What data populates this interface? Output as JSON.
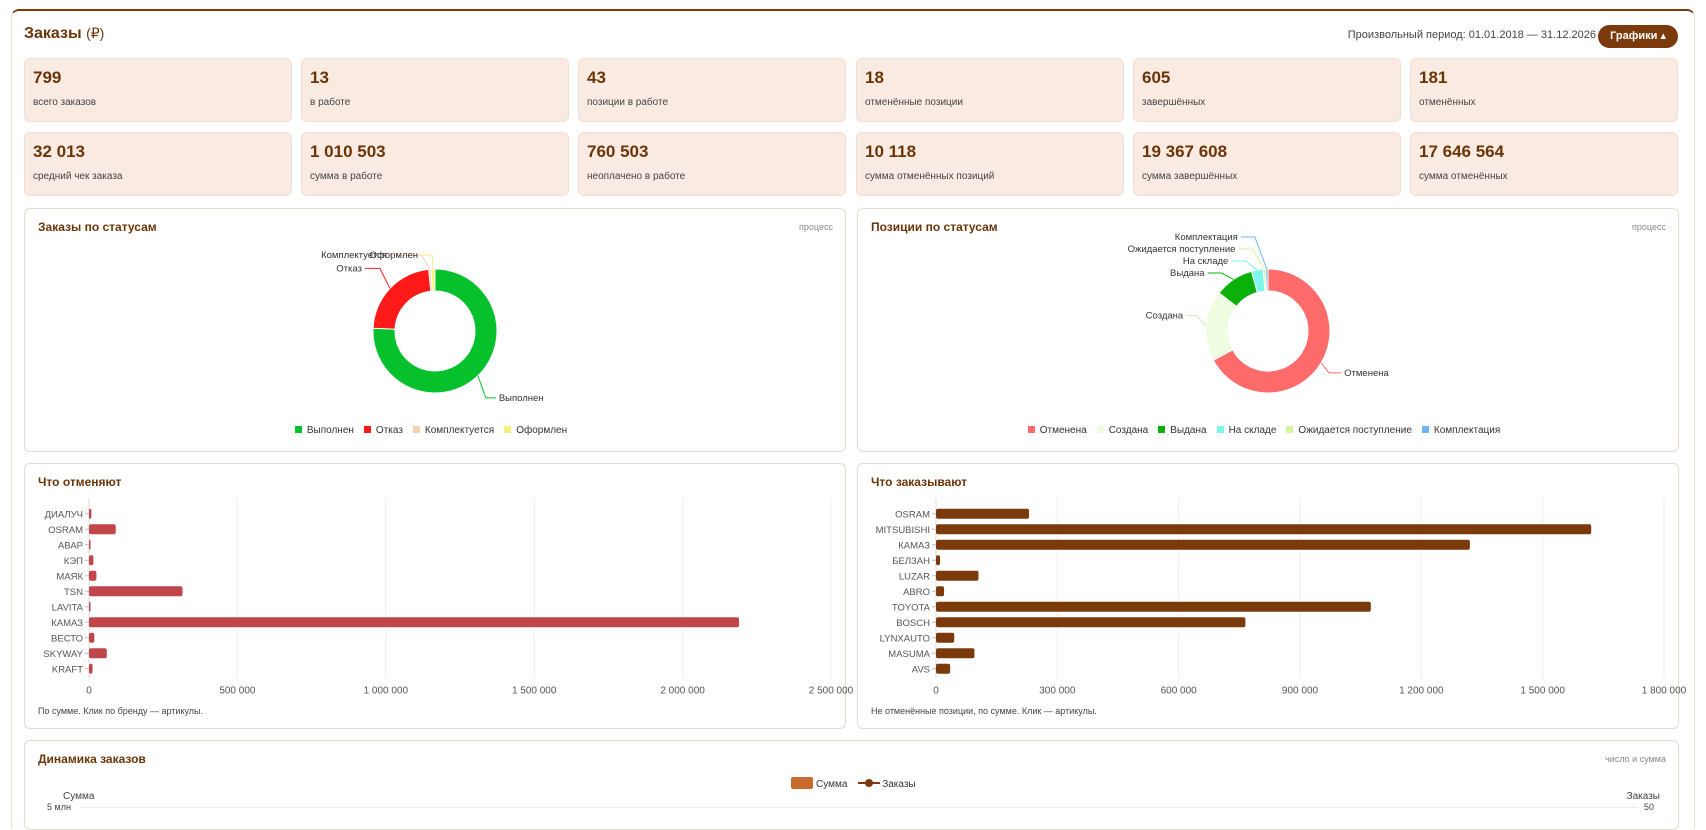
{
  "header": {
    "title": "Заказы",
    "currency": "(₽)",
    "period": "Произвольный период: 01.01.2018 — 31.12.2026",
    "charts_button": "Графики ▴"
  },
  "kpis_row1": [
    {
      "value": "799",
      "label": "всего заказов"
    },
    {
      "value": "13",
      "label": "в работе"
    },
    {
      "value": "43",
      "label": "позиции в работе"
    },
    {
      "value": "18",
      "label": "отменённые позиции"
    },
    {
      "value": "605",
      "label": "завершённых"
    },
    {
      "value": "181",
      "label": "отменённых"
    }
  ],
  "kpis_row2": [
    {
      "value": "32 013",
      "label": "средний чек заказа"
    },
    {
      "value": "1 010 503",
      "label": "сумма в работе"
    },
    {
      "value": "760 503",
      "label": "неоплачено в работе"
    },
    {
      "value": "10 118",
      "label": "сумма отменённых позиций"
    },
    {
      "value": "19 367 608",
      "label": "сумма завершённых"
    },
    {
      "value": "17 646 564",
      "label": "сумма отменённых"
    }
  ],
  "orders_status": {
    "title": "Заказы по статусам",
    "hint": "процесс",
    "legend": [
      "Выполнен",
      "Отказ",
      "Комплектуется",
      "Оформлен"
    ]
  },
  "positions_status": {
    "title": "Позиции по статусам",
    "hint": "процесс",
    "legend": [
      "Отменена",
      "Создана",
      "Выдана",
      "На складе",
      "Ожидается поступление",
      "Комплектация"
    ]
  },
  "cancel_panel": {
    "title": "Что отменяют",
    "note": "По сумме. Клик по бренду — артикулы."
  },
  "order_panel": {
    "title": "Что заказывают",
    "note": "Не отменённые позиции, по сумме. Клик — артикулы."
  },
  "dynamics": {
    "title": "Динамика заказов",
    "hint": "число и сумма",
    "legend_sum": "Сумма",
    "legend_orders": "Заказы",
    "left_axis_title": "Сумма",
    "right_axis_title": "Заказы",
    "left_top_tick": "5 млн",
    "right_top_tick": "50"
  },
  "colors": {
    "accent": "#7a3a0c",
    "kpi_bg": "#faebe2",
    "cancel_bar": "#c0464b",
    "order_bar": "#7a3a0c"
  },
  "chart_data": [
    {
      "type": "pie",
      "title": "Заказы по статусам",
      "labels": [
        "Выполнен",
        "Отказ",
        "Комплектуется",
        "Оформлен"
      ],
      "values": [
        605,
        181,
        5,
        8
      ],
      "colors": [
        "#06c02c",
        "#ff1a1a",
        "#f5d2b0",
        "#f5f07a"
      ],
      "donut": true,
      "legend": "bottom"
    },
    {
      "type": "pie",
      "title": "Позиции по статусам",
      "labels": [
        "Отменена",
        "Создана",
        "Выдана",
        "На складе",
        "Ожидается поступление",
        "Комплектация"
      ],
      "values": [
        66,
        18,
        10,
        3,
        0.6,
        0.6
      ],
      "colors": [
        "#ff6b6b",
        "#eefce0",
        "#0bb00b",
        "#7af7e9",
        "#d4f59c",
        "#6ab5f2"
      ],
      "donut": true,
      "legend": "bottom"
    },
    {
      "type": "bar",
      "orientation": "horizontal",
      "title": "Что отменяют",
      "categories": [
        "ДИАЛУЧ",
        "OSRAM",
        "АВАР",
        "КЭП",
        "МАЯК",
        "TSN",
        "LAVITA",
        "КАМАЗ",
        "ВЕСТО",
        "SKYWAY",
        "KRAFT"
      ],
      "values": [
        8000,
        90000,
        2000,
        15000,
        25000,
        315000,
        2000,
        2190000,
        18000,
        60000,
        12000
      ],
      "xlim": [
        0,
        2500000
      ],
      "xticks": [
        "0",
        "500 000",
        "1 000 000",
        "1 500 000",
        "2 000 000",
        "2 500 000"
      ],
      "grid": true
    },
    {
      "type": "bar",
      "orientation": "horizontal",
      "title": "Что заказывают",
      "categories": [
        "OSRAM",
        "MITSUBISHI",
        "КАМАЗ",
        "БЕЛЗАН",
        "LUZAR",
        "ABRO",
        "TOYOTA",
        "BOSCH",
        "LYNXAUTO",
        "MASUMA",
        "AVS"
      ],
      "values": [
        230000,
        1620000,
        1320000,
        10000,
        105000,
        20000,
        1075000,
        765000,
        45000,
        95000,
        35000
      ],
      "xlim": [
        0,
        1800000
      ],
      "xticks": [
        "0",
        "300 000",
        "600 000",
        "900 000",
        "1 200 000",
        "1 500 000",
        "1 800 000"
      ],
      "grid": true
    }
  ]
}
